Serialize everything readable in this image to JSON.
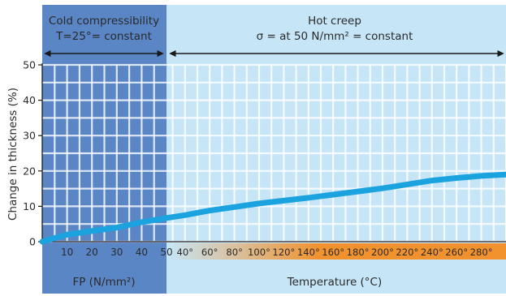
{
  "chart_data": {
    "type": "line",
    "cold_section": {
      "title_line1": "Cold compressibility",
      "title_line2": "T=25°= constant",
      "x_ticks": [
        "10",
        "20",
        "30",
        "40",
        "50"
      ],
      "x_label": "FP (N/mm²)"
    },
    "hot_section": {
      "title_line1": "Hot creep",
      "title_line2": "σ = at 50 N/mm² = constant",
      "x_ticks": [
        "40°",
        "60°",
        "80°",
        "100°",
        "120°",
        "140°",
        "160°",
        "180°",
        "200°",
        "220°",
        "240°",
        "260°",
        "280°"
      ],
      "x_label": "Temperature (°C)"
    },
    "ylabel": "Change in thickness (%)",
    "ylim": [
      0,
      50
    ],
    "y_ticks": [
      "0",
      "10",
      "20",
      "30",
      "40",
      "50"
    ],
    "grid": true,
    "series": [
      {
        "color": "#1aa3df",
        "cold_points": [
          [
            0,
            0
          ],
          [
            10,
            2
          ],
          [
            20,
            3
          ],
          [
            30,
            4
          ],
          [
            40,
            5.5
          ],
          [
            50,
            6.7
          ]
        ],
        "hot_points": [
          [
            25,
            6.7
          ],
          [
            40,
            7.5
          ],
          [
            60,
            8.8
          ],
          [
            80,
            9.8
          ],
          [
            100,
            10.8
          ],
          [
            120,
            11.6
          ],
          [
            140,
            12.4
          ],
          [
            160,
            13.3
          ],
          [
            180,
            14.2
          ],
          [
            200,
            15.1
          ],
          [
            220,
            16.2
          ],
          [
            240,
            17.3
          ],
          [
            260,
            18.0
          ],
          [
            280,
            18.6
          ],
          [
            300,
            19.0
          ]
        ]
      }
    ],
    "colors": {
      "cold_band": "#5b86c6",
      "hot_band": "#c6e6f8",
      "temperature_gradient": [
        "#c6e6f8",
        "#f2922e"
      ]
    }
  }
}
